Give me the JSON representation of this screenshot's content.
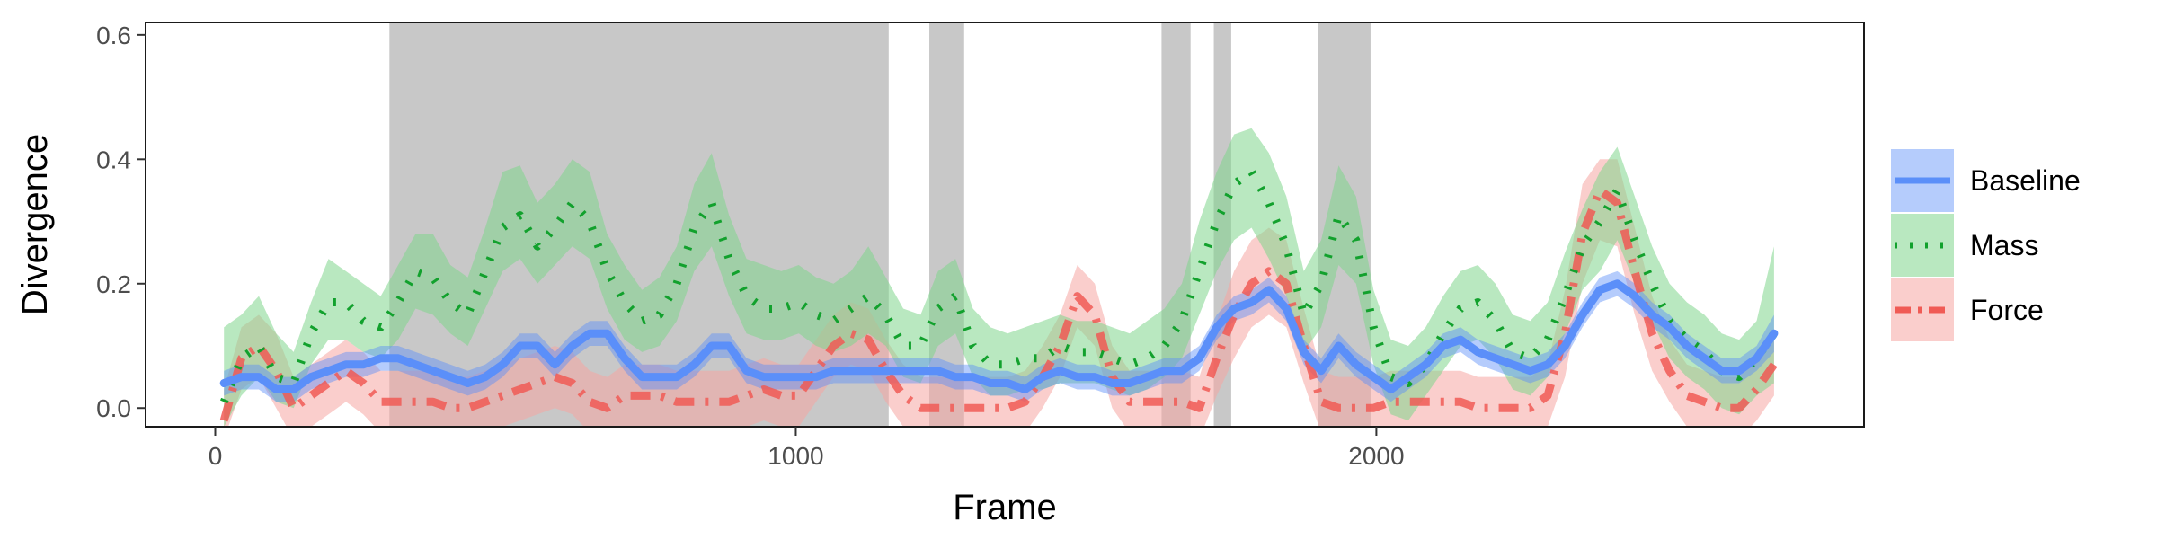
{
  "chart_data": {
    "type": "line",
    "title": "",
    "xlabel": "Frame",
    "ylabel": "Divergence",
    "xlim": [
      -120,
      2840
    ],
    "ylim": [
      -0.03,
      0.62
    ],
    "xticks": [
      0,
      1000,
      2000
    ],
    "yticks": [
      0.0,
      0.2,
      0.4,
      0.6
    ],
    "ytick_labels": [
      "0.0",
      "0.2",
      "0.4",
      "0.6"
    ],
    "grid": false,
    "legend_position": "right",
    "shaded_x_intervals": [
      [
        300,
        1160
      ],
      [
        1230,
        1290
      ],
      [
        1630,
        1680
      ],
      [
        1720,
        1750
      ],
      [
        1900,
        1990
      ]
    ],
    "shaded_color": "#c8c8c8",
    "x": [
      15,
      45,
      75,
      105,
      135,
      165,
      195,
      225,
      255,
      285,
      315,
      345,
      375,
      405,
      435,
      465,
      495,
      525,
      555,
      585,
      615,
      645,
      675,
      705,
      735,
      765,
      795,
      825,
      855,
      885,
      915,
      945,
      975,
      1005,
      1035,
      1065,
      1095,
      1125,
      1155,
      1185,
      1215,
      1245,
      1275,
      1305,
      1335,
      1365,
      1395,
      1425,
      1455,
      1485,
      1515,
      1545,
      1575,
      1605,
      1635,
      1665,
      1695,
      1725,
      1755,
      1785,
      1815,
      1845,
      1875,
      1905,
      1935,
      1965,
      1995,
      2025,
      2055,
      2085,
      2115,
      2145,
      2175,
      2205,
      2235,
      2265,
      2295,
      2325,
      2355,
      2385,
      2415,
      2445,
      2475,
      2505,
      2535,
      2565,
      2595,
      2625,
      2655,
      2685
    ],
    "series": [
      {
        "name": "Baseline",
        "color": "#5b8ff9",
        "style": "solid",
        "values": [
          0.04,
          0.05,
          0.05,
          0.03,
          0.03,
          0.05,
          0.06,
          0.07,
          0.07,
          0.08,
          0.08,
          0.07,
          0.06,
          0.05,
          0.04,
          0.05,
          0.07,
          0.1,
          0.1,
          0.07,
          0.1,
          0.12,
          0.12,
          0.08,
          0.05,
          0.05,
          0.05,
          0.07,
          0.1,
          0.1,
          0.06,
          0.05,
          0.05,
          0.05,
          0.05,
          0.06,
          0.06,
          0.06,
          0.06,
          0.06,
          0.06,
          0.06,
          0.05,
          0.05,
          0.04,
          0.04,
          0.03,
          0.05,
          0.06,
          0.05,
          0.05,
          0.04,
          0.04,
          0.05,
          0.06,
          0.06,
          0.08,
          0.13,
          0.16,
          0.17,
          0.19,
          0.16,
          0.09,
          0.06,
          0.1,
          0.07,
          0.05,
          0.03,
          0.05,
          0.07,
          0.1,
          0.11,
          0.09,
          0.08,
          0.07,
          0.06,
          0.07,
          0.1,
          0.15,
          0.19,
          0.2,
          0.18,
          0.15,
          0.13,
          0.1,
          0.08,
          0.06,
          0.06,
          0.08,
          0.12
        ],
        "lower": [
          0.02,
          0.03,
          0.03,
          0.01,
          0.01,
          0.03,
          0.04,
          0.05,
          0.05,
          0.06,
          0.06,
          0.05,
          0.04,
          0.03,
          0.02,
          0.03,
          0.05,
          0.08,
          0.08,
          0.05,
          0.08,
          0.1,
          0.1,
          0.06,
          0.03,
          0.03,
          0.03,
          0.05,
          0.08,
          0.08,
          0.04,
          0.03,
          0.03,
          0.03,
          0.03,
          0.04,
          0.04,
          0.04,
          0.04,
          0.04,
          0.04,
          0.04,
          0.03,
          0.03,
          0.02,
          0.02,
          0.01,
          0.03,
          0.04,
          0.03,
          0.03,
          0.02,
          0.02,
          0.03,
          0.04,
          0.04,
          0.06,
          0.11,
          0.14,
          0.15,
          0.17,
          0.14,
          0.07,
          0.04,
          0.08,
          0.05,
          0.03,
          0.01,
          0.03,
          0.05,
          0.08,
          0.09,
          0.07,
          0.06,
          0.05,
          0.04,
          0.05,
          0.08,
          0.13,
          0.17,
          0.18,
          0.16,
          0.13,
          0.11,
          0.08,
          0.06,
          0.04,
          0.04,
          0.06,
          0.09
        ],
        "upper": [
          0.06,
          0.07,
          0.07,
          0.05,
          0.05,
          0.07,
          0.08,
          0.09,
          0.09,
          0.1,
          0.1,
          0.09,
          0.08,
          0.07,
          0.06,
          0.07,
          0.09,
          0.12,
          0.12,
          0.09,
          0.12,
          0.14,
          0.14,
          0.1,
          0.07,
          0.07,
          0.07,
          0.09,
          0.12,
          0.12,
          0.08,
          0.07,
          0.07,
          0.07,
          0.07,
          0.08,
          0.08,
          0.08,
          0.08,
          0.08,
          0.08,
          0.08,
          0.07,
          0.07,
          0.06,
          0.06,
          0.05,
          0.07,
          0.08,
          0.07,
          0.07,
          0.06,
          0.06,
          0.07,
          0.08,
          0.08,
          0.1,
          0.15,
          0.18,
          0.19,
          0.21,
          0.18,
          0.11,
          0.08,
          0.12,
          0.09,
          0.07,
          0.05,
          0.07,
          0.09,
          0.12,
          0.13,
          0.11,
          0.1,
          0.09,
          0.08,
          0.09,
          0.12,
          0.17,
          0.21,
          0.22,
          0.2,
          0.17,
          0.15,
          0.12,
          0.1,
          0.08,
          0.08,
          0.1,
          0.15
        ]
      },
      {
        "name": "Mass",
        "color": "#12a12d",
        "fill": "#7fd58c",
        "style": "dotted",
        "values": [
          0.01,
          0.08,
          0.1,
          0.05,
          0.04,
          0.12,
          0.17,
          0.17,
          0.14,
          0.13,
          0.17,
          0.22,
          0.21,
          0.17,
          0.15,
          0.22,
          0.29,
          0.31,
          0.26,
          0.29,
          0.33,
          0.3,
          0.22,
          0.17,
          0.14,
          0.15,
          0.2,
          0.29,
          0.33,
          0.24,
          0.18,
          0.16,
          0.16,
          0.17,
          0.15,
          0.14,
          0.16,
          0.18,
          0.15,
          0.1,
          0.1,
          0.16,
          0.18,
          0.1,
          0.07,
          0.07,
          0.08,
          0.08,
          0.1,
          0.09,
          0.09,
          0.08,
          0.07,
          0.08,
          0.1,
          0.14,
          0.22,
          0.3,
          0.36,
          0.38,
          0.33,
          0.26,
          0.15,
          0.2,
          0.31,
          0.27,
          0.13,
          0.05,
          0.04,
          0.07,
          0.12,
          0.16,
          0.17,
          0.14,
          0.09,
          0.08,
          0.11,
          0.18,
          0.26,
          0.3,
          0.35,
          0.27,
          0.2,
          0.14,
          0.11,
          0.09,
          0.06,
          0.05,
          0.08,
          0.12
        ],
        "lower": [
          -0.03,
          0.02,
          0.05,
          0.01,
          0.0,
          0.07,
          0.11,
          0.11,
          0.09,
          0.08,
          0.11,
          0.16,
          0.15,
          0.12,
          0.1,
          0.16,
          0.22,
          0.24,
          0.2,
          0.23,
          0.26,
          0.24,
          0.16,
          0.11,
          0.09,
          0.1,
          0.14,
          0.22,
          0.26,
          0.18,
          0.12,
          0.11,
          0.11,
          0.12,
          0.1,
          0.09,
          0.1,
          0.12,
          0.1,
          0.05,
          0.04,
          0.1,
          0.12,
          0.05,
          0.02,
          0.02,
          0.03,
          0.03,
          0.04,
          0.04,
          0.04,
          0.03,
          0.02,
          0.03,
          0.05,
          0.08,
          0.15,
          0.22,
          0.27,
          0.29,
          0.24,
          0.18,
          0.09,
          0.13,
          0.23,
          0.2,
          0.07,
          -0.01,
          -0.02,
          0.02,
          0.06,
          0.1,
          0.11,
          0.08,
          0.03,
          0.02,
          0.05,
          0.12,
          0.19,
          0.22,
          0.27,
          0.2,
          0.14,
          0.08,
          0.05,
          0.03,
          0.0,
          -0.01,
          0.02,
          0.04
        ],
        "upper": [
          0.13,
          0.15,
          0.18,
          0.12,
          0.09,
          0.17,
          0.24,
          0.22,
          0.2,
          0.18,
          0.23,
          0.28,
          0.28,
          0.23,
          0.21,
          0.29,
          0.38,
          0.39,
          0.33,
          0.36,
          0.4,
          0.38,
          0.28,
          0.23,
          0.19,
          0.21,
          0.26,
          0.36,
          0.41,
          0.31,
          0.24,
          0.23,
          0.22,
          0.23,
          0.21,
          0.2,
          0.22,
          0.26,
          0.21,
          0.16,
          0.15,
          0.22,
          0.24,
          0.16,
          0.13,
          0.12,
          0.13,
          0.14,
          0.15,
          0.14,
          0.14,
          0.13,
          0.12,
          0.14,
          0.16,
          0.2,
          0.3,
          0.38,
          0.44,
          0.45,
          0.41,
          0.34,
          0.22,
          0.27,
          0.39,
          0.34,
          0.19,
          0.11,
          0.1,
          0.13,
          0.18,
          0.22,
          0.23,
          0.2,
          0.15,
          0.14,
          0.17,
          0.25,
          0.32,
          0.38,
          0.42,
          0.34,
          0.26,
          0.2,
          0.17,
          0.15,
          0.12,
          0.11,
          0.14,
          0.26
        ]
      },
      {
        "name": "Force",
        "color": "#f05b55",
        "fill": "#f6a6a2",
        "style": "dashdot",
        "values": [
          -0.02,
          0.08,
          0.1,
          0.06,
          0.0,
          0.02,
          0.04,
          0.06,
          0.04,
          0.01,
          0.01,
          0.01,
          0.01,
          0.0,
          0.0,
          0.01,
          0.02,
          0.03,
          0.04,
          0.05,
          0.04,
          0.01,
          0.0,
          0.02,
          0.02,
          0.02,
          0.01,
          0.01,
          0.01,
          0.01,
          0.02,
          0.03,
          0.02,
          0.02,
          0.06,
          0.1,
          0.12,
          0.11,
          0.06,
          0.02,
          0.0,
          0.0,
          0.0,
          0.0,
          0.0,
          0.0,
          0.01,
          0.05,
          0.1,
          0.18,
          0.15,
          0.05,
          0.01,
          0.01,
          0.01,
          0.01,
          0.0,
          0.08,
          0.15,
          0.2,
          0.22,
          0.2,
          0.1,
          0.01,
          0.0,
          0.0,
          0.0,
          0.01,
          0.01,
          0.01,
          0.01,
          0.01,
          0.0,
          0.0,
          0.0,
          0.0,
          0.02,
          0.12,
          0.28,
          0.35,
          0.33,
          0.22,
          0.12,
          0.06,
          0.02,
          0.01,
          0.0,
          0.0,
          0.03,
          0.07
        ],
        "lower": [
          -0.05,
          0.03,
          0.05,
          0.0,
          -0.05,
          -0.03,
          -0.01,
          0.01,
          -0.01,
          -0.04,
          -0.04,
          -0.04,
          -0.04,
          -0.05,
          -0.05,
          -0.04,
          -0.03,
          -0.02,
          -0.01,
          0.0,
          -0.01,
          -0.04,
          -0.05,
          -0.03,
          -0.03,
          -0.03,
          -0.04,
          -0.04,
          -0.04,
          -0.04,
          -0.03,
          -0.02,
          -0.03,
          -0.03,
          0.01,
          0.05,
          0.07,
          0.06,
          0.01,
          -0.03,
          -0.05,
          -0.05,
          -0.05,
          -0.05,
          -0.05,
          -0.05,
          -0.04,
          0.0,
          0.05,
          0.13,
          0.1,
          0.0,
          -0.04,
          -0.04,
          -0.04,
          -0.04,
          -0.05,
          0.02,
          0.08,
          0.13,
          0.15,
          0.13,
          0.04,
          -0.04,
          -0.05,
          -0.05,
          -0.05,
          -0.04,
          -0.04,
          -0.04,
          -0.04,
          -0.04,
          -0.05,
          -0.05,
          -0.05,
          -0.05,
          -0.03,
          0.05,
          0.2,
          0.27,
          0.26,
          0.15,
          0.06,
          0.01,
          -0.03,
          -0.04,
          -0.05,
          -0.05,
          -0.02,
          0.02
        ],
        "upper": [
          0.03,
          0.13,
          0.15,
          0.12,
          0.05,
          0.07,
          0.09,
          0.11,
          0.09,
          0.06,
          0.06,
          0.06,
          0.06,
          0.05,
          0.05,
          0.06,
          0.07,
          0.08,
          0.09,
          0.1,
          0.09,
          0.06,
          0.05,
          0.07,
          0.07,
          0.07,
          0.06,
          0.06,
          0.06,
          0.06,
          0.07,
          0.08,
          0.07,
          0.07,
          0.11,
          0.15,
          0.17,
          0.16,
          0.11,
          0.07,
          0.05,
          0.05,
          0.05,
          0.05,
          0.05,
          0.05,
          0.06,
          0.1,
          0.15,
          0.23,
          0.2,
          0.1,
          0.06,
          0.06,
          0.06,
          0.06,
          0.05,
          0.14,
          0.22,
          0.27,
          0.29,
          0.27,
          0.16,
          0.06,
          0.05,
          0.05,
          0.05,
          0.06,
          0.06,
          0.06,
          0.06,
          0.06,
          0.05,
          0.05,
          0.05,
          0.05,
          0.07,
          0.19,
          0.36,
          0.4,
          0.4,
          0.29,
          0.18,
          0.11,
          0.07,
          0.06,
          0.05,
          0.05,
          0.08,
          0.12
        ]
      }
    ]
  },
  "axes": {
    "xlabel": "Frame",
    "ylabel": "Divergence",
    "x_tick_labels": [
      "0",
      "1000",
      "2000"
    ],
    "y_tick_labels": [
      "0.0",
      "0.2",
      "0.4",
      "0.6"
    ]
  },
  "legend": {
    "items": [
      {
        "label": "Baseline",
        "color": "#5b8ff9"
      },
      {
        "label": "Mass",
        "color": "#12a12d"
      },
      {
        "label": "Force",
        "color": "#f05b55"
      }
    ]
  }
}
